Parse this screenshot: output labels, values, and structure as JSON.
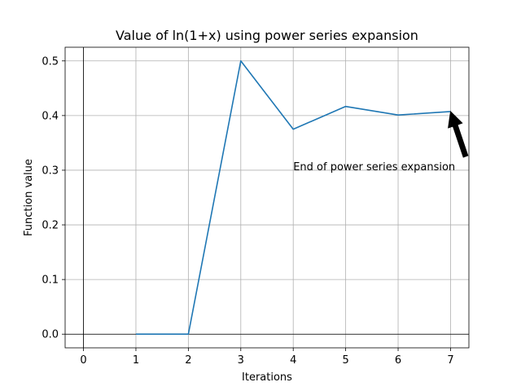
{
  "chart_data": {
    "type": "line",
    "title": "Value of ln(1+x) using power series expansion",
    "xlabel": "Iterations",
    "ylabel": "Function value",
    "x_ticks": [
      0,
      1,
      2,
      3,
      4,
      5,
      6,
      7
    ],
    "y_ticks": [
      0.0,
      0.1,
      0.2,
      0.3,
      0.4,
      0.5
    ],
    "x_tick_labels": [
      "0",
      "1",
      "2",
      "3",
      "4",
      "5",
      "6",
      "7"
    ],
    "y_tick_labels": [
      "0.0",
      "0.1",
      "0.2",
      "0.3",
      "0.4",
      "0.5"
    ],
    "xlim": [
      -0.35,
      7.35
    ],
    "ylim": [
      -0.025,
      0.525
    ],
    "grid": true,
    "series": [
      {
        "x": [
          1,
          2,
          3,
          4,
          5,
          6,
          7
        ],
        "values": [
          0.0,
          0.0,
          0.5,
          0.375,
          0.4167,
          0.401,
          0.4073
        ],
        "color": "#1f77b4"
      }
    ],
    "reference_lines": {
      "x": 0,
      "y": 0
    },
    "annotation": {
      "text": "End of power series expansion",
      "point": [
        7,
        0.4073
      ],
      "text_anchor": [
        4,
        0.3
      ]
    }
  }
}
